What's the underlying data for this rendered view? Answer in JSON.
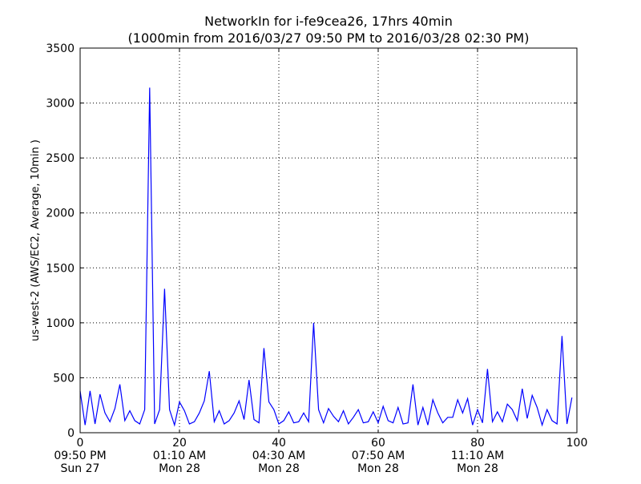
{
  "chart_data": {
    "type": "line",
    "title": "NetworkIn for i-fe9cea26, 17hrs 40min",
    "subtitle": "(1000min from 2016/03/27 09:50 PM to 2016/03/28 02:30 PM)",
    "ylabel": "us-west-2 (AWS/EC2, Average, 10min )",
    "xlabel": "",
    "xlim": [
      0,
      100
    ],
    "ylim": [
      0,
      3500
    ],
    "grid": true,
    "line_color": "#0000ff",
    "xticks": [
      {
        "value": 0,
        "label": "0",
        "time": "09:50 PM",
        "day": "Sun 27"
      },
      {
        "value": 20,
        "label": "20",
        "time": "01:10 AM",
        "day": "Mon 28"
      },
      {
        "value": 40,
        "label": "40",
        "time": "04:30 AM",
        "day": "Mon 28"
      },
      {
        "value": 60,
        "label": "60",
        "time": "07:50 AM",
        "day": "Mon 28"
      },
      {
        "value": 80,
        "label": "80",
        "time": "11:10 AM",
        "day": "Mon 28"
      },
      {
        "value": 100,
        "label": "100",
        "time": "",
        "day": ""
      }
    ],
    "yticks": [
      {
        "value": 0,
        "label": "0"
      },
      {
        "value": 500,
        "label": "500"
      },
      {
        "value": 1000,
        "label": "1000"
      },
      {
        "value": 1500,
        "label": "1500"
      },
      {
        "value": 2000,
        "label": "2000"
      },
      {
        "value": 2500,
        "label": "2500"
      },
      {
        "value": 3000,
        "label": "3000"
      },
      {
        "value": 3500,
        "label": "3500"
      }
    ],
    "series": [
      {
        "x": [
          0,
          1,
          2,
          3,
          4,
          5,
          6,
          7,
          8,
          9,
          10,
          11,
          12,
          13,
          14,
          15,
          16,
          17,
          18,
          19,
          20,
          21,
          22,
          23,
          24,
          25,
          26,
          27,
          28,
          29,
          30,
          31,
          32,
          33,
          34,
          35,
          36,
          37,
          38,
          39,
          40,
          41,
          42,
          43,
          44,
          45,
          46,
          47,
          48,
          49,
          50,
          51,
          52,
          53,
          54,
          55,
          56,
          57,
          58,
          59,
          60,
          61,
          62,
          63,
          64,
          65,
          66,
          67,
          68,
          69,
          70,
          71,
          72,
          73,
          74,
          75,
          76,
          77,
          78,
          79,
          80,
          81,
          82,
          83,
          84,
          85,
          86,
          87,
          88,
          89,
          90,
          91,
          92,
          93,
          94,
          95,
          96,
          97,
          98,
          99
        ],
        "values": [
          380,
          70,
          380,
          80,
          350,
          180,
          100,
          220,
          440,
          110,
          200,
          110,
          80,
          210,
          3140,
          80,
          210,
          1310,
          210,
          70,
          280,
          200,
          80,
          100,
          180,
          290,
          560,
          100,
          200,
          80,
          110,
          180,
          290,
          120,
          480,
          120,
          90,
          770,
          280,
          210,
          80,
          110,
          190,
          90,
          100,
          180,
          100,
          1000,
          210,
          90,
          220,
          150,
          100,
          200,
          80,
          140,
          210,
          90,
          100,
          190,
          90,
          240,
          110,
          90,
          230,
          80,
          90,
          440,
          70,
          230,
          70,
          300,
          180,
          90,
          140,
          140,
          300,
          180,
          310,
          70,
          210,
          90,
          580,
          100,
          190,
          100,
          260,
          210,
          110,
          400,
          130,
          340,
          230,
          70,
          210,
          110,
          80,
          880,
          80,
          320
        ]
      }
    ]
  }
}
